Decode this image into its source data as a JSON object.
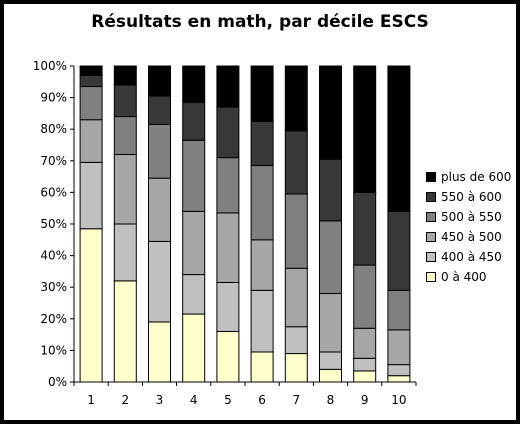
{
  "chart_data": {
    "type": "bar",
    "stacked": true,
    "normalized": true,
    "title": "Résultats en math, par décile ESCS",
    "xlabel": "",
    "ylabel": "",
    "categories": [
      "1",
      "2",
      "3",
      "4",
      "5",
      "6",
      "7",
      "8",
      "9",
      "10"
    ],
    "ylim": [
      0,
      100
    ],
    "yticks": [
      "0%",
      "10%",
      "20%",
      "30%",
      "40%",
      "50%",
      "60%",
      "70%",
      "80%",
      "90%",
      "100%"
    ],
    "grid": false,
    "legend_position": "right",
    "series": [
      {
        "name": "0 à 400",
        "color": "#ffffcc",
        "values": [
          48.5,
          32,
          19,
          21.5,
          16,
          9.5,
          9,
          4,
          3.5,
          2
        ]
      },
      {
        "name": "400 à 450",
        "color": "#c0c0c0",
        "values": [
          21,
          18,
          25.5,
          12.5,
          15.5,
          19.5,
          8.5,
          5.5,
          4,
          3.5
        ]
      },
      {
        "name": "450 à 500",
        "color": "#a6a6a6",
        "values": [
          13.5,
          22,
          20,
          20,
          22,
          16,
          18.5,
          18.5,
          9.5,
          11
        ]
      },
      {
        "name": "500 à 550",
        "color": "#808080",
        "values": [
          10.5,
          12,
          17,
          22.5,
          17.5,
          23.5,
          23.5,
          23,
          20,
          12.5
        ]
      },
      {
        "name": "550 à 600",
        "color": "#383838",
        "values": [
          3.5,
          10,
          9,
          12,
          16,
          14,
          20,
          19.5,
          23,
          25
        ]
      },
      {
        "name": "plus de 600",
        "color": "#000000",
        "values": [
          3,
          6,
          9.5,
          11.5,
          13,
          17.5,
          20.5,
          29.5,
          40,
          46
        ]
      }
    ]
  }
}
